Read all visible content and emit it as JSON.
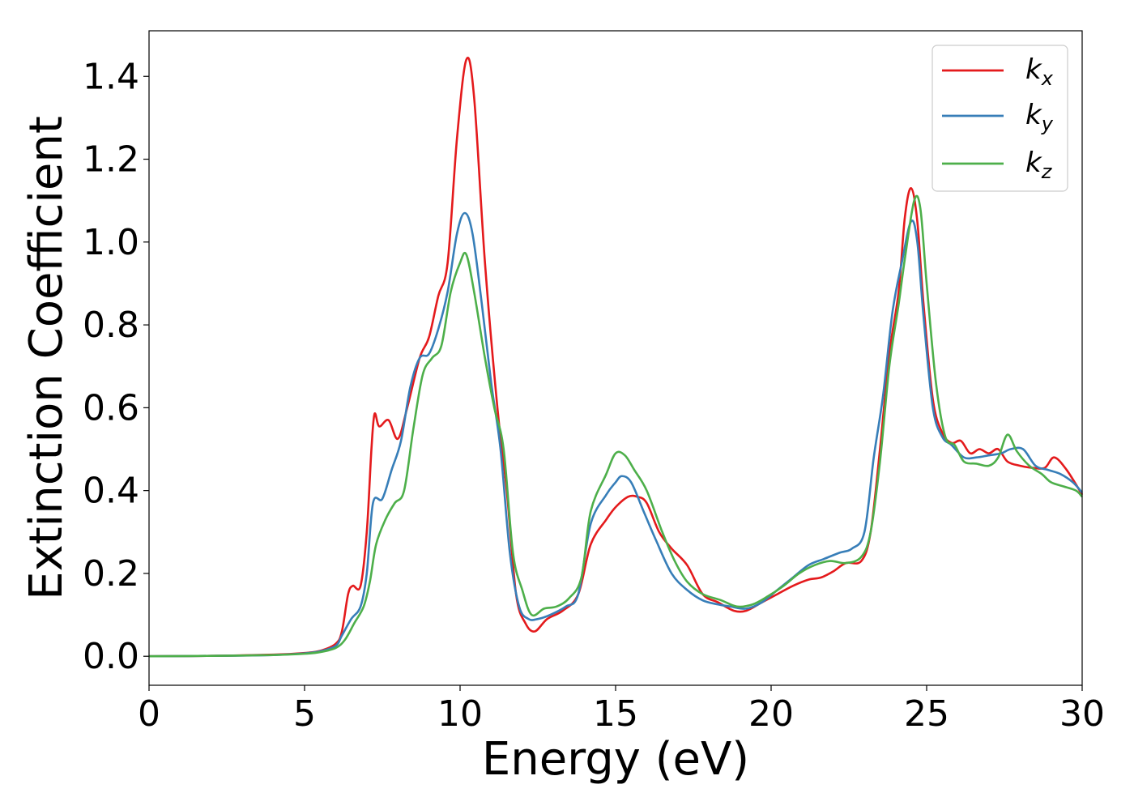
{
  "chart_data": {
    "type": "line",
    "xlabel": "Energy (eV)",
    "ylabel": "Extinction Coefficient",
    "xlim": [
      0,
      30
    ],
    "ylim": [
      -0.07,
      1.51
    ],
    "x_ticks": [
      0,
      5,
      10,
      15,
      20,
      25,
      30
    ],
    "y_ticks": [
      0.0,
      0.2,
      0.4,
      0.6,
      0.8,
      1.0,
      1.2,
      1.4
    ],
    "x_tick_labels": [
      "0",
      "5",
      "10",
      "15",
      "20",
      "25",
      "30"
    ],
    "y_tick_labels": [
      "0.0",
      "0.2",
      "0.4",
      "0.6",
      "0.8",
      "1.0",
      "1.2",
      "1.4"
    ],
    "grid": false,
    "legend_position": "top-right",
    "series": [
      {
        "name": "k_x",
        "legend_base": "k",
        "legend_sub": "x",
        "color": "#e41a1c",
        "points": [
          [
            0,
            0
          ],
          [
            2,
            0.001
          ],
          [
            4,
            0.004
          ],
          [
            5,
            0.008
          ],
          [
            5.5,
            0.013
          ],
          [
            6,
            0.03
          ],
          [
            6.2,
            0.06
          ],
          [
            6.4,
            0.15
          ],
          [
            6.55,
            0.17
          ],
          [
            6.8,
            0.17
          ],
          [
            7,
            0.3
          ],
          [
            7.15,
            0.5
          ],
          [
            7.25,
            0.585
          ],
          [
            7.4,
            0.555
          ],
          [
            7.7,
            0.57
          ],
          [
            8.0,
            0.525
          ],
          [
            8.3,
            0.6
          ],
          [
            8.7,
            0.72
          ],
          [
            9.0,
            0.77
          ],
          [
            9.3,
            0.87
          ],
          [
            9.6,
            0.95
          ],
          [
            9.9,
            1.25
          ],
          [
            10.2,
            1.44
          ],
          [
            10.45,
            1.35
          ],
          [
            10.8,
            0.95
          ],
          [
            11.2,
            0.6
          ],
          [
            11.5,
            0.4
          ],
          [
            11.8,
            0.15
          ],
          [
            12.1,
            0.08
          ],
          [
            12.4,
            0.06
          ],
          [
            12.8,
            0.09
          ],
          [
            13.3,
            0.11
          ],
          [
            13.8,
            0.15
          ],
          [
            14.2,
            0.27
          ],
          [
            14.7,
            0.33
          ],
          [
            15.0,
            0.36
          ],
          [
            15.4,
            0.385
          ],
          [
            15.7,
            0.385
          ],
          [
            16.0,
            0.37
          ],
          [
            16.4,
            0.3
          ],
          [
            16.8,
            0.26
          ],
          [
            17.3,
            0.22
          ],
          [
            17.8,
            0.15
          ],
          [
            18.3,
            0.13
          ],
          [
            18.8,
            0.11
          ],
          [
            19.2,
            0.11
          ],
          [
            19.7,
            0.13
          ],
          [
            20.2,
            0.15
          ],
          [
            20.7,
            0.17
          ],
          [
            21.2,
            0.185
          ],
          [
            21.6,
            0.19
          ],
          [
            22,
            0.205
          ],
          [
            22.4,
            0.225
          ],
          [
            22.9,
            0.23
          ],
          [
            23.2,
            0.3
          ],
          [
            23.5,
            0.5
          ],
          [
            23.8,
            0.73
          ],
          [
            24.1,
            0.88
          ],
          [
            24.3,
            1.06
          ],
          [
            24.5,
            1.13
          ],
          [
            24.7,
            1.05
          ],
          [
            24.9,
            0.85
          ],
          [
            25.2,
            0.62
          ],
          [
            25.5,
            0.54
          ],
          [
            25.8,
            0.515
          ],
          [
            26.1,
            0.52
          ],
          [
            26.4,
            0.49
          ],
          [
            26.7,
            0.5
          ],
          [
            27.0,
            0.49
          ],
          [
            27.3,
            0.5
          ],
          [
            27.6,
            0.47
          ],
          [
            28.0,
            0.46
          ],
          [
            28.4,
            0.455
          ],
          [
            28.8,
            0.455
          ],
          [
            29.1,
            0.48
          ],
          [
            29.5,
            0.45
          ],
          [
            30,
            0.39
          ]
        ]
      },
      {
        "name": "k_y",
        "legend_base": "k",
        "legend_sub": "y",
        "color": "#377eb8",
        "points": [
          [
            0,
            0
          ],
          [
            2,
            0.001
          ],
          [
            4,
            0.003
          ],
          [
            5,
            0.007
          ],
          [
            5.5,
            0.012
          ],
          [
            6,
            0.025
          ],
          [
            6.2,
            0.05
          ],
          [
            6.5,
            0.09
          ],
          [
            6.8,
            0.12
          ],
          [
            7,
            0.2
          ],
          [
            7.2,
            0.37
          ],
          [
            7.5,
            0.38
          ],
          [
            7.8,
            0.45
          ],
          [
            8.1,
            0.52
          ],
          [
            8.4,
            0.65
          ],
          [
            8.7,
            0.72
          ],
          [
            9.0,
            0.73
          ],
          [
            9.3,
            0.79
          ],
          [
            9.6,
            0.88
          ],
          [
            9.9,
            1.02
          ],
          [
            10.15,
            1.07
          ],
          [
            10.4,
            1.02
          ],
          [
            10.7,
            0.85
          ],
          [
            11.0,
            0.66
          ],
          [
            11.3,
            0.5
          ],
          [
            11.6,
            0.25
          ],
          [
            11.9,
            0.12
          ],
          [
            12.2,
            0.09
          ],
          [
            12.5,
            0.09
          ],
          [
            12.9,
            0.1
          ],
          [
            13.4,
            0.12
          ],
          [
            13.8,
            0.15
          ],
          [
            14.2,
            0.32
          ],
          [
            14.7,
            0.39
          ],
          [
            15.0,
            0.42
          ],
          [
            15.2,
            0.435
          ],
          [
            15.5,
            0.42
          ],
          [
            15.9,
            0.35
          ],
          [
            16.3,
            0.28
          ],
          [
            16.8,
            0.2
          ],
          [
            17.3,
            0.16
          ],
          [
            17.8,
            0.135
          ],
          [
            18.3,
            0.125
          ],
          [
            18.7,
            0.12
          ],
          [
            19.2,
            0.115
          ],
          [
            19.7,
            0.13
          ],
          [
            20.2,
            0.16
          ],
          [
            20.7,
            0.19
          ],
          [
            21.2,
            0.22
          ],
          [
            21.7,
            0.235
          ],
          [
            22.2,
            0.25
          ],
          [
            22.6,
            0.26
          ],
          [
            23.0,
            0.3
          ],
          [
            23.3,
            0.48
          ],
          [
            23.6,
            0.63
          ],
          [
            23.9,
            0.83
          ],
          [
            24.2,
            0.95
          ],
          [
            24.5,
            1.05
          ],
          [
            24.7,
            1.0
          ],
          [
            24.9,
            0.82
          ],
          [
            25.2,
            0.6
          ],
          [
            25.5,
            0.53
          ],
          [
            25.8,
            0.51
          ],
          [
            26.2,
            0.48
          ],
          [
            26.6,
            0.48
          ],
          [
            27.0,
            0.485
          ],
          [
            27.4,
            0.49
          ],
          [
            27.7,
            0.5
          ],
          [
            28.1,
            0.5
          ],
          [
            28.5,
            0.46
          ],
          [
            28.9,
            0.45
          ],
          [
            29.3,
            0.44
          ],
          [
            29.7,
            0.42
          ],
          [
            30,
            0.395
          ]
        ]
      },
      {
        "name": "k_z",
        "legend_base": "k",
        "legend_sub": "z",
        "color": "#4daf4a",
        "points": [
          [
            0,
            0
          ],
          [
            2,
            0.001
          ],
          [
            4,
            0.003
          ],
          [
            5,
            0.006
          ],
          [
            5.5,
            0.01
          ],
          [
            6,
            0.02
          ],
          [
            6.3,
            0.04
          ],
          [
            6.6,
            0.08
          ],
          [
            6.9,
            0.12
          ],
          [
            7.1,
            0.18
          ],
          [
            7.3,
            0.27
          ],
          [
            7.6,
            0.33
          ],
          [
            7.9,
            0.37
          ],
          [
            8.2,
            0.4
          ],
          [
            8.5,
            0.55
          ],
          [
            8.8,
            0.68
          ],
          [
            9.1,
            0.72
          ],
          [
            9.4,
            0.75
          ],
          [
            9.7,
            0.88
          ],
          [
            10.0,
            0.95
          ],
          [
            10.2,
            0.97
          ],
          [
            10.45,
            0.88
          ],
          [
            10.8,
            0.72
          ],
          [
            11.1,
            0.6
          ],
          [
            11.4,
            0.5
          ],
          [
            11.7,
            0.25
          ],
          [
            12.0,
            0.16
          ],
          [
            12.3,
            0.1
          ],
          [
            12.7,
            0.115
          ],
          [
            13.1,
            0.12
          ],
          [
            13.5,
            0.14
          ],
          [
            13.9,
            0.19
          ],
          [
            14.2,
            0.35
          ],
          [
            14.7,
            0.44
          ],
          [
            15.0,
            0.49
          ],
          [
            15.3,
            0.485
          ],
          [
            15.6,
            0.45
          ],
          [
            16.0,
            0.4
          ],
          [
            16.5,
            0.3
          ],
          [
            16.9,
            0.23
          ],
          [
            17.3,
            0.18
          ],
          [
            17.8,
            0.15
          ],
          [
            18.4,
            0.135
          ],
          [
            18.9,
            0.12
          ],
          [
            19.4,
            0.125
          ],
          [
            19.9,
            0.145
          ],
          [
            20.4,
            0.17
          ],
          [
            20.9,
            0.2
          ],
          [
            21.4,
            0.22
          ],
          [
            21.9,
            0.23
          ],
          [
            22.4,
            0.225
          ],
          [
            22.9,
            0.24
          ],
          [
            23.2,
            0.3
          ],
          [
            23.5,
            0.47
          ],
          [
            23.8,
            0.7
          ],
          [
            24.1,
            0.85
          ],
          [
            24.3,
            0.96
          ],
          [
            24.6,
            1.1
          ],
          [
            24.8,
            1.08
          ],
          [
            25.0,
            0.9
          ],
          [
            25.3,
            0.66
          ],
          [
            25.6,
            0.53
          ],
          [
            25.9,
            0.51
          ],
          [
            26.2,
            0.47
          ],
          [
            26.6,
            0.465
          ],
          [
            27.0,
            0.46
          ],
          [
            27.3,
            0.48
          ],
          [
            27.6,
            0.535
          ],
          [
            27.9,
            0.495
          ],
          [
            28.3,
            0.46
          ],
          [
            28.7,
            0.44
          ],
          [
            29.0,
            0.42
          ],
          [
            29.4,
            0.41
          ],
          [
            29.8,
            0.4
          ],
          [
            30,
            0.385
          ]
        ]
      }
    ]
  }
}
